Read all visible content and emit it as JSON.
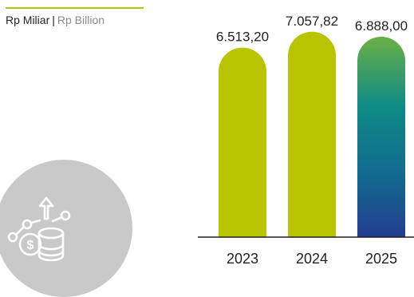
{
  "unit_label": {
    "local": "Rp Miliar",
    "separator": "|",
    "english": "Rp Billion"
  },
  "badge": {
    "icon": "finance-growth-icon"
  },
  "chart_data": {
    "type": "bar",
    "title": "",
    "xlabel": "",
    "ylabel": "",
    "unit": "Rp Miliar | Rp Billion",
    "categories": [
      "2023",
      "2024",
      "2025"
    ],
    "values": [
      6513.2,
      7057.82,
      6888.0
    ],
    "value_labels": [
      "6.513,20",
      "7.057,82",
      "6.888,00"
    ],
    "ylim": [
      0,
      7600
    ],
    "grid": false,
    "legend": "none",
    "colors": {
      "bar": "#b9c400",
      "highlight_gradient": [
        "#6ab046",
        "#0e8b86",
        "#12698f",
        "#233e8f"
      ],
      "axis": "#231f20"
    }
  }
}
